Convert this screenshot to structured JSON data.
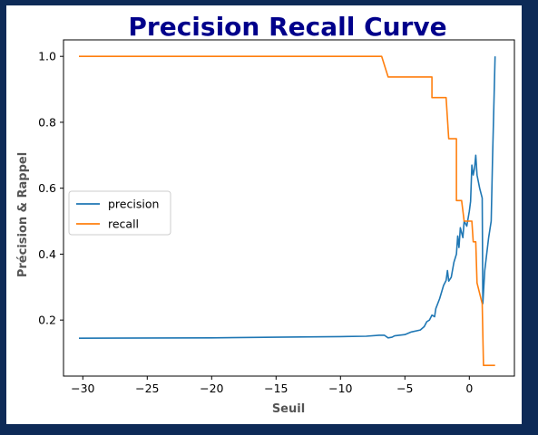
{
  "chart_data": {
    "type": "line",
    "title": "Precision Recall Curve",
    "xlabel": "Seuil",
    "ylabel": "Précision & Rappel",
    "xlim": [
      -31.5,
      3.5
    ],
    "ylim": [
      0.03,
      1.05
    ],
    "xticks": [
      -30,
      -25,
      -20,
      -15,
      -10,
      -5,
      0
    ],
    "xtick_labels": [
      "−30",
      "−25",
      "−20",
      "−15",
      "−10",
      "−5",
      "0"
    ],
    "yticks": [
      0.2,
      0.4,
      0.6,
      0.8,
      1.0
    ],
    "ytick_labels": [
      "0.2",
      "0.4",
      "0.6",
      "0.8",
      "1.0"
    ],
    "grid": false,
    "legend_position": "center-left",
    "series": [
      {
        "name": "precision",
        "color": "#1f77b4",
        "points": [
          [
            -30.3,
            0.145
          ],
          [
            -20.0,
            0.146
          ],
          [
            -15.0,
            0.148
          ],
          [
            -10.0,
            0.15
          ],
          [
            -8.0,
            0.151
          ],
          [
            -7.0,
            0.154
          ],
          [
            -6.6,
            0.154
          ],
          [
            -6.3,
            0.146
          ],
          [
            -6.0,
            0.148
          ],
          [
            -5.8,
            0.152
          ],
          [
            -5.0,
            0.156
          ],
          [
            -4.5,
            0.164
          ],
          [
            -3.8,
            0.17
          ],
          [
            -3.5,
            0.18
          ],
          [
            -3.3,
            0.195
          ],
          [
            -3.1,
            0.2
          ],
          [
            -2.9,
            0.215
          ],
          [
            -2.7,
            0.21
          ],
          [
            -2.6,
            0.235
          ],
          [
            -2.3,
            0.265
          ],
          [
            -2.0,
            0.305
          ],
          [
            -1.8,
            0.32
          ],
          [
            -1.7,
            0.35
          ],
          [
            -1.6,
            0.318
          ],
          [
            -1.4,
            0.33
          ],
          [
            -1.2,
            0.375
          ],
          [
            -1.0,
            0.4
          ],
          [
            -0.9,
            0.455
          ],
          [
            -0.8,
            0.42
          ],
          [
            -0.7,
            0.48
          ],
          [
            -0.5,
            0.45
          ],
          [
            -0.4,
            0.5
          ],
          [
            -0.2,
            0.485
          ],
          [
            0.0,
            0.53
          ],
          [
            0.1,
            0.56
          ],
          [
            0.2,
            0.67
          ],
          [
            0.3,
            0.64
          ],
          [
            0.4,
            0.66
          ],
          [
            0.5,
            0.7
          ],
          [
            0.6,
            0.64
          ],
          [
            0.8,
            0.6
          ],
          [
            1.0,
            0.57
          ],
          [
            1.05,
            0.25
          ],
          [
            1.2,
            0.35
          ],
          [
            1.5,
            0.45
          ],
          [
            1.7,
            0.5
          ],
          [
            1.8,
            0.69
          ],
          [
            2.0,
            1.0
          ]
        ]
      },
      {
        "name": "recall",
        "color": "#ff7f0e",
        "points": [
          [
            -30.3,
            1.0
          ],
          [
            -6.8,
            1.0
          ],
          [
            -6.3,
            0.9375
          ],
          [
            -2.9,
            0.9375
          ],
          [
            -2.9,
            0.875
          ],
          [
            -1.8,
            0.875
          ],
          [
            -1.6,
            0.75
          ],
          [
            -1.0,
            0.75
          ],
          [
            -1.0,
            0.5625
          ],
          [
            -0.6,
            0.5625
          ],
          [
            -0.4,
            0.5
          ],
          [
            0.2,
            0.5
          ],
          [
            0.3,
            0.4375
          ],
          [
            0.5,
            0.4375
          ],
          [
            0.6,
            0.3125
          ],
          [
            1.0,
            0.25
          ],
          [
            1.1,
            0.0625
          ],
          [
            2.0,
            0.0625
          ]
        ]
      }
    ]
  }
}
